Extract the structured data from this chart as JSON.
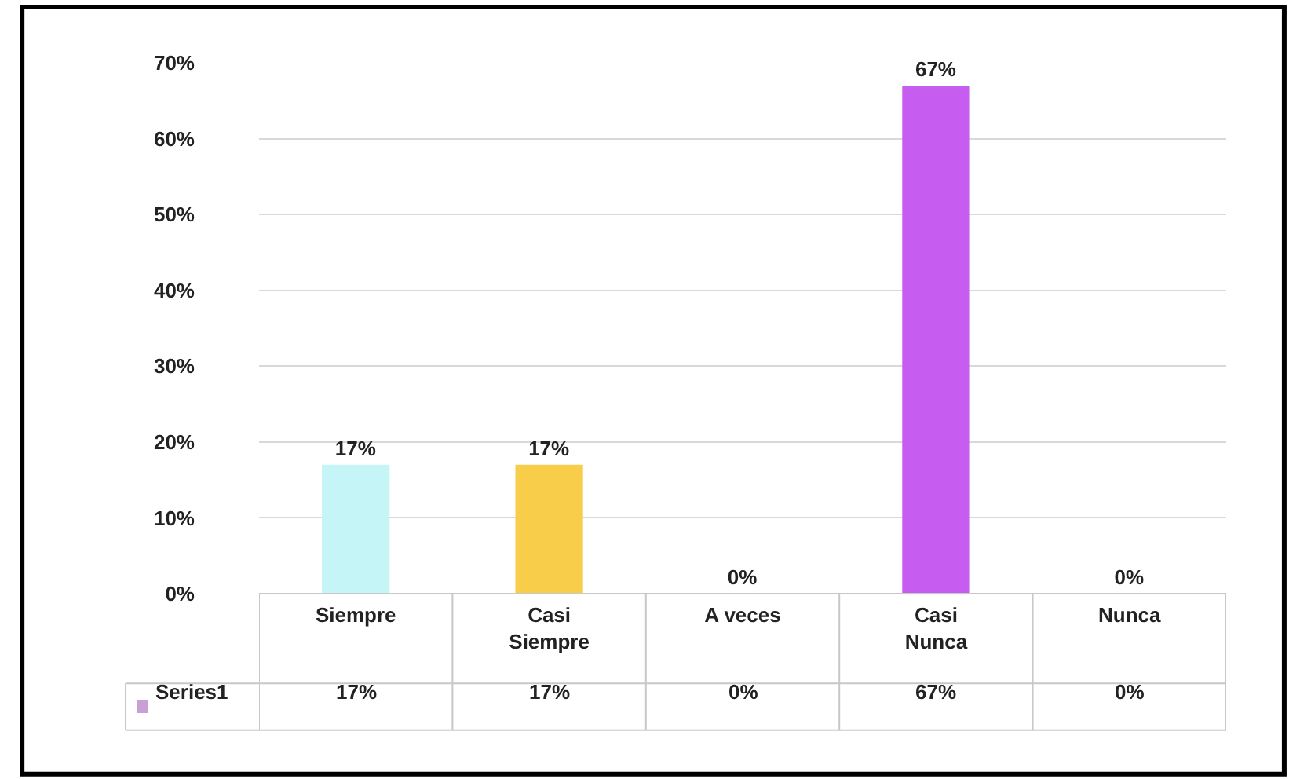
{
  "chart_data": {
    "type": "bar",
    "categories": [
      "Siempre",
      "Casi Siempre",
      "A veces",
      "Casi Nunca",
      "Nunca"
    ],
    "series": [
      {
        "name": "Series1",
        "color": "#c9a0d6",
        "colors": [
          "#c6f5f7",
          "#f7cd4a",
          "#7fa23a",
          "#c65cf0",
          "#d61c1c"
        ],
        "values": [
          17,
          17,
          0,
          67,
          0
        ],
        "value_labels": [
          "17%",
          "17%",
          "0%",
          "67%",
          "0%"
        ]
      }
    ],
    "ylim": [
      0,
      70
    ],
    "yticks": [
      {
        "value": 0,
        "label": "0%"
      },
      {
        "value": 10,
        "label": "10%"
      },
      {
        "value": 20,
        "label": "20%"
      },
      {
        "value": 30,
        "label": "30%"
      },
      {
        "value": 40,
        "label": "40%"
      },
      {
        "value": 50,
        "label": "50%"
      },
      {
        "value": 60,
        "label": "60%"
      },
      {
        "value": 70,
        "label": "70%"
      }
    ],
    "grid": "y",
    "data_labels": true
  }
}
